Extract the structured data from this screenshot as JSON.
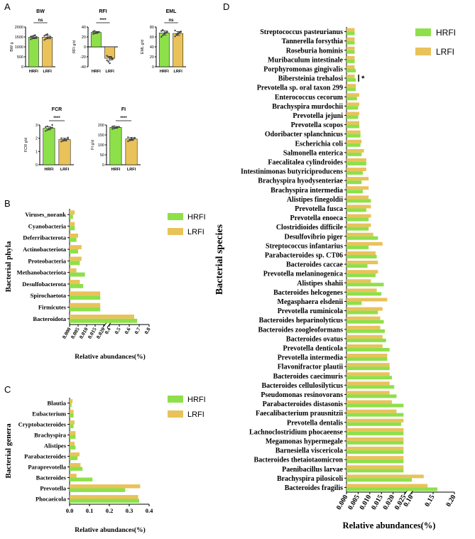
{
  "colors": {
    "hrfi": "#8ee04a",
    "lrfi": "#e9c25a",
    "axis": "#000000",
    "dot": "#444444"
  },
  "panel_labels": {
    "a": "A",
    "b": "B",
    "c": "C",
    "d": "D"
  },
  "legend": {
    "hrfi": "HRFI",
    "lrfi": "LRFI"
  },
  "chart_data": [
    {
      "id": "A1",
      "type": "bar",
      "title": "BW",
      "ylabel": "BW g",
      "categories": [
        "HRFI",
        "LRFI"
      ],
      "values": [
        1480,
        1490
      ],
      "errors": [
        70,
        90
      ],
      "ylim": [
        0,
        2000
      ],
      "yticks": [
        "0",
        "500",
        "1000",
        "1500",
        "2000"
      ],
      "yticks_v": [
        0,
        500,
        1000,
        1500,
        2000
      ],
      "significance": "ns",
      "points": [
        [
          1380,
          1420,
          1450,
          1470,
          1500,
          1510,
          1530,
          1560,
          1590,
          1440
        ],
        [
          1350,
          1400,
          1460,
          1490,
          1520,
          1560,
          1600,
          1640,
          1480,
          1430
        ]
      ]
    },
    {
      "id": "A2",
      "type": "bar",
      "title": "RFI",
      "ylabel": "RFI g/d",
      "categories": [
        "HRFI",
        "LRFI"
      ],
      "values": [
        29,
        -23
      ],
      "errors": [
        2,
        4
      ],
      "ylim": [
        -40,
        40
      ],
      "yticks": [
        "-40",
        "-20",
        "0",
        "20",
        "40"
      ],
      "yticks_v": [
        -40,
        -20,
        0,
        20,
        40
      ],
      "significance": "****",
      "points": [
        [
          26,
          27,
          28,
          29,
          30,
          31,
          32,
          29,
          28,
          30
        ],
        [
          -18,
          -20,
          -22,
          -24,
          -25,
          -27,
          -30,
          -33,
          -21,
          -23
        ]
      ]
    },
    {
      "id": "A3",
      "type": "bar",
      "title": "EML",
      "ylabel": "EML g/d",
      "categories": [
        "HRFI",
        "LRFI"
      ],
      "values": [
        68,
        67
      ],
      "errors": [
        4,
        4
      ],
      "ylim": [
        0,
        80
      ],
      "yticks": [
        "0",
        "20",
        "40",
        "60",
        "80"
      ],
      "yticks_v": [
        0,
        20,
        40,
        60,
        80
      ],
      "significance": "ns",
      "points": [
        [
          60,
          63,
          66,
          68,
          70,
          72,
          74,
          65,
          69,
          71
        ],
        [
          61,
          64,
          66,
          68,
          70,
          73,
          65,
          67,
          69,
          71
        ]
      ]
    },
    {
      "id": "A4",
      "type": "bar",
      "title": "FCR",
      "ylabel": "FCR g/d",
      "categories": [
        "HRFI",
        "LRFI"
      ],
      "values": [
        2.75,
        1.9
      ],
      "errors": [
        0.12,
        0.1
      ],
      "ylim": [
        0,
        3
      ],
      "yticks": [
        "0",
        "1",
        "2",
        "3"
      ],
      "yticks_v": [
        0,
        1,
        2,
        3
      ],
      "significance": "****",
      "points": [
        [
          2.55,
          2.62,
          2.7,
          2.75,
          2.8,
          2.85,
          2.9,
          2.7,
          2.78,
          3.0
        ],
        [
          1.75,
          1.8,
          1.85,
          1.9,
          1.95,
          2.0,
          1.88,
          1.92,
          1.82,
          2.05
        ]
      ]
    },
    {
      "id": "A5",
      "type": "bar",
      "title": "FI",
      "ylabel": "FI g/d",
      "categories": [
        "HRFI",
        "LRFI"
      ],
      "values": [
        188,
        130
      ],
      "errors": [
        5,
        8
      ],
      "ylim": [
        0,
        200
      ],
      "yticks": [
        "0",
        "50",
        "100",
        "150",
        "200"
      ],
      "yticks_v": [
        0,
        50,
        100,
        150,
        200
      ],
      "significance": "****",
      "points": [
        [
          180,
          183,
          186,
          188,
          190,
          192,
          194,
          185,
          189,
          191
        ],
        [
          118,
          122,
          126,
          130,
          134,
          138,
          128,
          132,
          125,
          136
        ]
      ]
    },
    {
      "id": "B",
      "type": "bar",
      "orientation": "horizontal",
      "title": "",
      "ylabel": "Bacterial phyla",
      "xlabel": "Relative abundances(%)",
      "categories": [
        "Viruses_norank",
        "Cyanobacteria",
        "Deferribacterota",
        "Actinobacteriota",
        "Proteobacteria",
        "Methanobacteriota",
        "Desulfobacterota",
        "Spirochaetota",
        "Firmicutes",
        "Bacteroidota"
      ],
      "series": [
        {
          "name": "HRFI",
          "values": [
            0.002,
            0.003,
            0.004,
            0.005,
            0.006,
            0.009,
            0.008,
            0.018,
            0.018,
            0.68
          ]
        },
        {
          "name": "LRFI",
          "values": [
            0.003,
            0.003,
            0.005,
            0.007,
            0.007,
            0.004,
            0.006,
            0.018,
            0.018,
            0.65
          ]
        }
      ],
      "xticks": [
        "0.000",
        "0.005",
        "0.010",
        "0.015",
        "0.020",
        "0.4",
        "0.5",
        "0.6",
        "0.7",
        "0.8"
      ],
      "xticks_v": [
        0,
        0.005,
        0.01,
        0.015,
        0.02,
        0.4,
        0.5,
        0.6,
        0.7,
        0.8
      ],
      "broken_axis": [
        0.02,
        0.4
      ]
    },
    {
      "id": "C",
      "type": "bar",
      "orientation": "horizontal",
      "title": "",
      "ylabel": "Bacterial genera",
      "xlabel": "Relative abundances(%)",
      "categories": [
        "Blautia",
        "Eubacterium",
        "Cryptobacteroides",
        "Brachyspira",
        "Alistipes",
        "Parabacteroides",
        "Paraprevotella",
        "Bacteroides",
        "Prevotella",
        "Phocaeicola"
      ],
      "series": [
        {
          "name": "HRFI",
          "values": [
            0.01,
            0.02,
            0.02,
            0.03,
            0.03,
            0.04,
            0.065,
            0.115,
            0.28,
            0.35
          ]
        },
        {
          "name": "LRFI",
          "values": [
            0.015,
            0.02,
            0.025,
            0.03,
            0.025,
            0.05,
            0.055,
            0.035,
            0.355,
            0.345
          ]
        }
      ],
      "xlim": [
        0,
        0.4
      ],
      "xticks": [
        "0.0",
        "0.1",
        "0.2",
        "0.3",
        "0.4"
      ],
      "xticks_v": [
        0,
        0.1,
        0.2,
        0.3,
        0.4
      ]
    },
    {
      "id": "D",
      "type": "bar",
      "orientation": "horizontal",
      "title": "",
      "ylabel": "Bacterial species",
      "xlabel": "Relative abundances(%)",
      "annotation": {
        "category": "Bibersteinia trehalosi",
        "text": "*"
      },
      "categories": [
        "Streptococcus pasteurianus",
        "Tannerella forsythia",
        "Roseburia hominis",
        "Muribaculum intestinale",
        "Porphyromonas gingivalis",
        "Bibersteinia trehalosi",
        "Prevotella sp. oral taxon 299",
        "Enterococcus cecorum",
        "Brachyspira murdochii",
        "Prevotella jejuni",
        "Prevotella scopos",
        "Odoribacter splanchnicus",
        "Escherichia coli",
        "Salmonella enterica",
        "Faecalitalea cylindroides",
        "Intestinimonas butyriciproducens",
        "Brachyspira hyodysenteriae",
        "Brachyspira intermedia",
        "Alistipes finegoldii",
        "Prevotella fusca",
        "Prevotella enoeca",
        "Clostridioides difficile",
        "Desulfovibrio piger",
        "Streptococcus infantarius",
        "Parabacteroides sp. CT06",
        "Bacteroides caccae",
        "Prevotella melaninogenica",
        "Alistipes shahii",
        "Bacteroides helcogenes",
        "Megasphaera elsdenii",
        "Prevotella ruminicola",
        "Bacteroides heparinolyticus",
        "Bacteroides zoogleoformans",
        "Bacteroides ovatus",
        "Prevotella denticola",
        "Prevotella intermedia",
        "Flavonifractor plautii",
        "Bacteroides caecimuris",
        "Bacteroides cellulosilyticus",
        "Pseudomonas resinovorans",
        "Parabacteroides distasonis",
        "Faecalibacterium prausnitzii",
        "Prevotella dentalis",
        "Lachnoclostridium phocaeense",
        "Megamonas hypermegale",
        "Barnesiella viscericola",
        "Bacteroides thetaiotaomicron",
        "Paenibacillus larvae",
        "Brachyspira pilosicoli",
        "Bacteroides fragilis"
      ],
      "series": [
        {
          "name": "HRFI",
          "values": [
            0.0035,
            0.0035,
            0.0035,
            0.0035,
            0.004,
            0.004,
            0.004,
            0.0045,
            0.005,
            0.005,
            0.0055,
            0.006,
            0.006,
            0.0065,
            0.0085,
            0.007,
            0.0065,
            0.007,
            0.0105,
            0.0085,
            0.0095,
            0.0095,
            0.0135,
            0.0095,
            0.013,
            0.009,
            0.0125,
            0.016,
            0.015,
            0.0065,
            0.0135,
            0.016,
            0.0165,
            0.017,
            0.0185,
            0.0175,
            0.0185,
            0.0195,
            0.0205,
            0.0215,
            0.0245,
            0.0245,
            0.0235,
            0.0245,
            0.0245,
            0.0245,
            0.0245,
            0.0245,
            0.1,
            0.16
          ]
        },
        {
          "name": "LRFI",
          "values": [
            0.0035,
            0.0035,
            0.0035,
            0.0035,
            0.0035,
            0.0035,
            0.004,
            0.0055,
            0.0055,
            0.0055,
            0.0055,
            0.006,
            0.0065,
            0.0075,
            0.0085,
            0.0085,
            0.0095,
            0.0095,
            0.0095,
            0.0105,
            0.0105,
            0.0105,
            0.0115,
            0.0155,
            0.0125,
            0.0135,
            0.0135,
            0.0105,
            0.013,
            0.0175,
            0.0155,
            0.0145,
            0.0145,
            0.0155,
            0.0155,
            0.0175,
            0.0185,
            0.0185,
            0.0185,
            0.0185,
            0.0195,
            0.0215,
            0.0245,
            0.0245,
            0.0245,
            0.0245,
            0.0245,
            0.0245,
            0.128,
            0.137
          ]
        }
      ],
      "xticks": [
        "0.000",
        "0.005",
        "0.010",
        "0.015",
        "0.020",
        "0.025",
        "0.10",
        "0.15",
        "0.20"
      ],
      "xticks_v": [
        0,
        0.005,
        0.01,
        0.015,
        0.02,
        0.025,
        0.1,
        0.15,
        0.2
      ],
      "broken_axis": [
        0.025,
        0.1
      ]
    }
  ]
}
